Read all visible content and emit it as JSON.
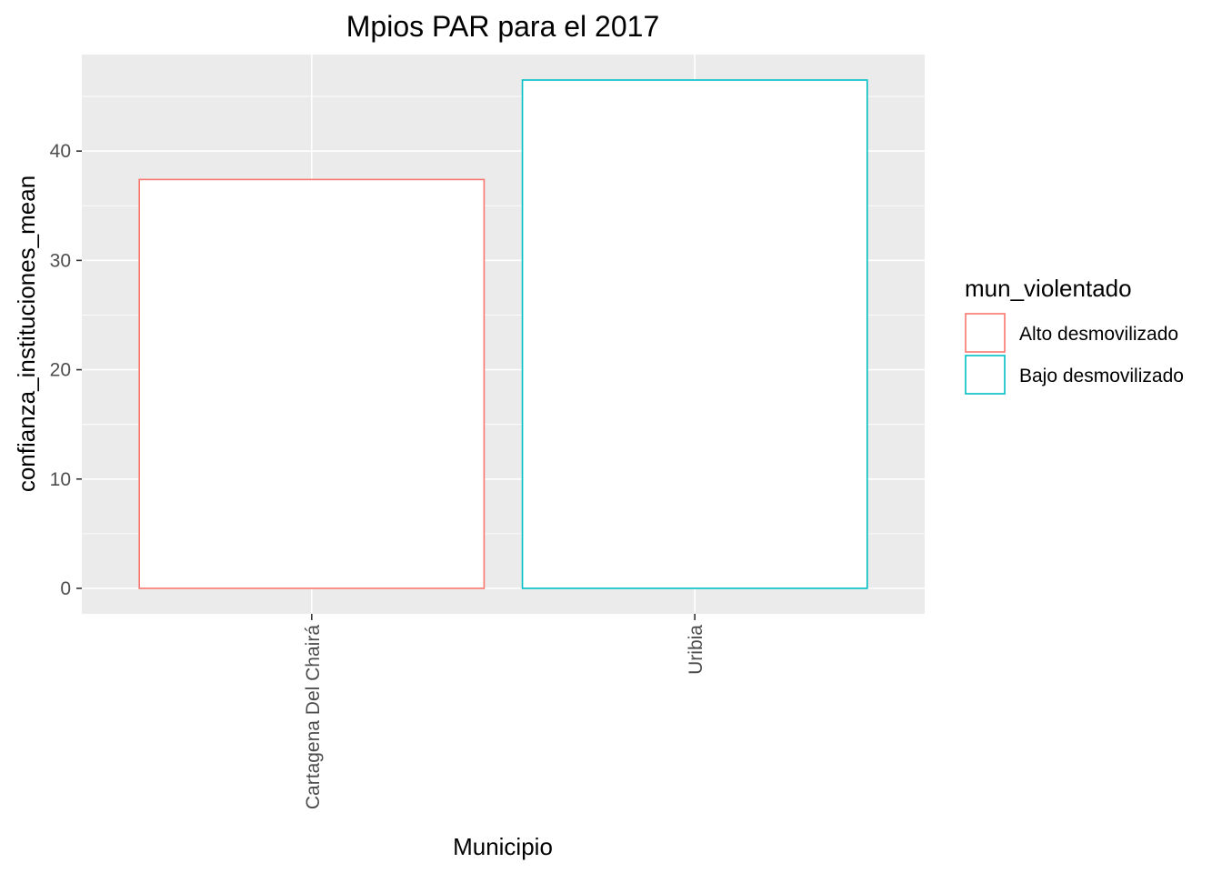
{
  "chart_data": {
    "type": "bar",
    "title": "Mpios PAR para el 2017",
    "xlabel": "Municipio",
    "ylabel": "confianza_instituciones_mean",
    "categories": [
      "Cartagena Del Chairá",
      "Uribia"
    ],
    "values": [
      37.4,
      46.5
    ],
    "bar_colors": [
      "#F8766D",
      "#00BFC4"
    ],
    "bar_groups": [
      "Alto desmovilizado",
      "Bajo desmovilizado"
    ],
    "ylim": [
      -2.33,
      48.83
    ],
    "yticks": [
      0,
      10,
      20,
      30,
      40
    ],
    "grid": true,
    "panel_background": "#EBEBEB",
    "legend": {
      "title": "mun_violentado",
      "position": "right",
      "items": [
        {
          "label": "Alto desmovilizado",
          "color": "#F8766D"
        },
        {
          "label": "Bajo desmovilizado",
          "color": "#00BFC4"
        }
      ]
    }
  }
}
